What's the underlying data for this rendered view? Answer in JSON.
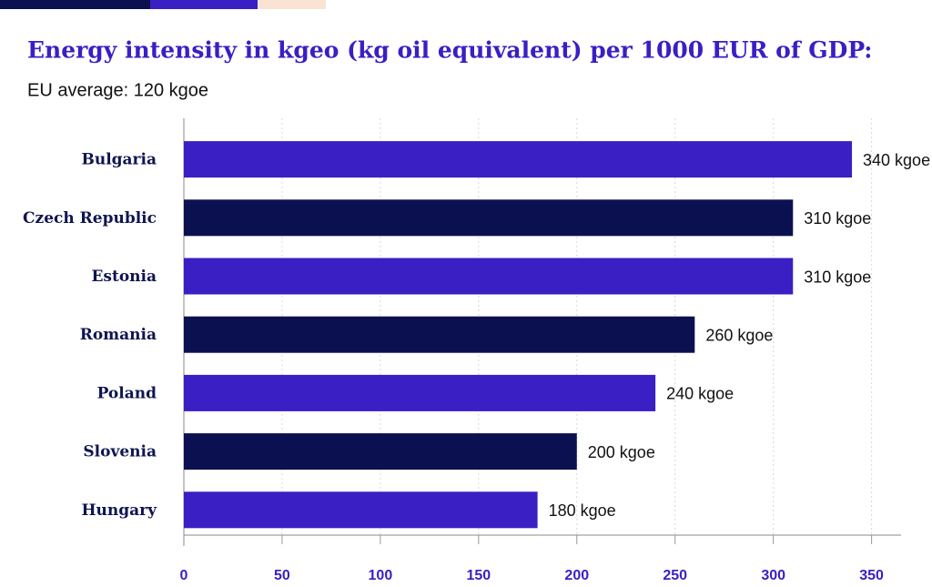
{
  "chart_data": {
    "type": "hbar",
    "title": "Energy intensity in kgeo (kg oil equivalent) per 1000 EUR of GDP:",
    "subtitle": "EU average: 120 kgoe",
    "categories": [
      "Bulgaria",
      "Czech Republic",
      "Estonia",
      "Romania",
      "Poland",
      "Slovenia",
      "Hungary"
    ],
    "values": [
      340,
      310,
      310,
      260,
      240,
      200,
      180
    ],
    "value_labels": [
      "340 kgoe",
      "310 kgoe",
      "310 kgoe",
      "260 kgoe",
      "240 kgoe",
      "200 kgoe",
      "180 kgoe"
    ],
    "colors": [
      "#3a1fc4",
      "#0b1150",
      "#3a1fc4",
      "#0b1150",
      "#3a1fc4",
      "#0b1150",
      "#3a1fc4"
    ],
    "xlim": [
      0,
      365
    ],
    "xticks": [
      0,
      50,
      100,
      150,
      200,
      250,
      300,
      350
    ],
    "grid": true
  }
}
